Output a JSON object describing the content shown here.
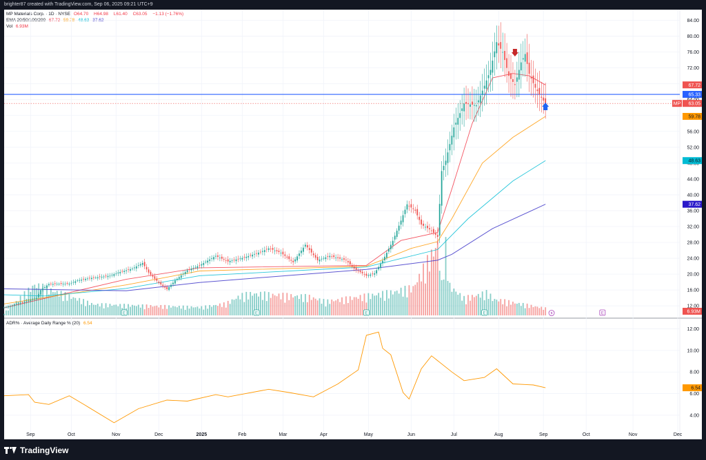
{
  "header": {
    "credit": "brighter87 created with TradingView.com, Sep 06, 2025 09:21 UTC+9"
  },
  "legend": {
    "symbol_line": {
      "name": "MP Materials Corp. · 1D · NYSE",
      "ohlc_labels": [
        "O",
        "H",
        "L",
        "C"
      ],
      "ohlc_values": [
        "64.70",
        "64.98",
        "61.40",
        "63.05"
      ],
      "change": "−1.13 (−1.76%)"
    },
    "ema_line": {
      "name": "EMA 20/50/100/200",
      "values": [
        "67.72",
        "59.78",
        "48.63",
        "37.62"
      ]
    },
    "vol_line": {
      "name": "Vol",
      "value": "6.93M"
    },
    "adr_line": {
      "name": "ADR% · Average Daily Range % (20)",
      "value": "6.54"
    }
  },
  "colors": {
    "up": "#26a69a",
    "down": "#ef5350",
    "ema20": "#f23645",
    "ema50": "#ff9800",
    "ema100": "#00bcd4",
    "ema200": "#3f37c9",
    "hline": "#2962ff",
    "adr": "#ff9800",
    "marker_down": "#c62828",
    "marker_up": "#1e66f5"
  },
  "icons": [
    "tradingview-logo-icon",
    "earnings-e-icon",
    "lightning-icon",
    "arrow-down-marker-icon",
    "arrow-up-marker-icon"
  ],
  "brand": {
    "name": "TradingView"
  },
  "chart_data": [
    {
      "type": "candlestick",
      "title": "MP Materials Corp. · 1D · NYSE",
      "x_ticks": [
        "Sep",
        "Oct",
        "Nov",
        "Dec",
        "2025",
        "Feb",
        "Mar",
        "Apr",
        "May",
        "Jun",
        "Jul",
        "Aug",
        "Sep",
        "Oct",
        "Nov",
        "Dec"
      ],
      "y_ticks": [
        "84.00",
        "80.00",
        "76.00",
        "72.00",
        "68.00",
        "64.00",
        "60.00",
        "56.00",
        "52.00",
        "48.00",
        "44.00",
        "40.00",
        "36.00",
        "32.00",
        "28.00",
        "24.00",
        "20.00",
        "16.00",
        "12.00"
      ],
      "ylim": [
        9.6,
        86
      ],
      "close_path": [
        [
          0,
          11.6
        ],
        [
          6,
          12.5
        ],
        [
          10,
          13
        ],
        [
          16,
          14
        ],
        [
          18,
          16
        ],
        [
          22,
          17.5
        ],
        [
          32,
          17.6
        ],
        [
          36,
          18.4
        ],
        [
          42,
          19
        ],
        [
          46,
          19.2
        ],
        [
          52,
          19.6
        ],
        [
          56,
          20.4
        ],
        [
          63,
          21.4
        ],
        [
          68,
          22.8
        ],
        [
          71,
          20.4
        ],
        [
          76,
          17.8
        ],
        [
          80,
          16.2
        ],
        [
          84,
          18.4
        ],
        [
          90,
          21
        ],
        [
          96,
          22.2
        ],
        [
          104,
          24.6
        ],
        [
          110,
          23.2
        ],
        [
          118,
          24.2
        ],
        [
          126,
          25.6
        ],
        [
          130,
          26.5
        ],
        [
          136,
          25.4
        ],
        [
          142,
          23
        ],
        [
          148,
          27.4
        ],
        [
          154,
          23.5
        ],
        [
          160,
          24.6
        ],
        [
          168,
          23.5
        ],
        [
          172,
          21.4
        ],
        [
          178,
          19.6
        ],
        [
          182,
          20.2
        ],
        [
          186,
          23.4
        ],
        [
          191,
          28.4
        ],
        [
          195,
          33.5
        ],
        [
          198,
          37.6
        ],
        [
          202,
          36
        ],
        [
          205,
          32.5
        ],
        [
          210,
          31
        ],
        [
          213,
          29.4
        ],
        [
          215,
          46
        ],
        [
          217,
          48.6
        ],
        [
          221,
          57
        ],
        [
          226,
          63
        ],
        [
          232,
          62.6
        ],
        [
          236,
          67.5
        ],
        [
          239,
          71.5
        ],
        [
          242,
          78.5
        ],
        [
          245,
          76
        ],
        [
          248,
          70
        ],
        [
          251,
          67.7
        ],
        [
          254,
          73.4
        ],
        [
          256,
          75.5
        ],
        [
          258,
          70.5
        ],
        [
          261,
          67
        ],
        [
          264,
          64.5
        ],
        [
          266,
          63.05
        ]
      ],
      "volume_bars": [
        [
          0,
          0.7
        ],
        [
          15,
          8.6
        ],
        [
          44,
          3.1
        ],
        [
          97,
          2.3
        ],
        [
          109,
          3.3
        ],
        [
          116,
          5.5
        ],
        [
          122,
          6.1
        ],
        [
          150,
          5.2
        ],
        [
          158,
          3.9
        ],
        [
          190,
          6.4
        ],
        [
          194,
          6.9
        ],
        [
          201,
          7.8
        ],
        [
          213,
          20
        ],
        [
          215,
          8.9
        ],
        [
          217,
          19.3
        ],
        [
          219,
          8.2
        ],
        [
          226,
          4.8
        ],
        [
          238,
          6.4
        ],
        [
          240,
          4.6
        ],
        [
          266,
          2
        ]
      ],
      "volume_value": "6.93M",
      "ema": [
        {
          "name": "EMA 20",
          "value": "67.72",
          "path": [
            [
              0,
              11.5
            ],
            [
              60,
              18.7
            ],
            [
              96,
              21.6
            ],
            [
              178,
              22.2
            ],
            [
              195,
              28.5
            ],
            [
              213,
              30.5
            ],
            [
              220,
              41.5
            ],
            [
              230,
              58
            ],
            [
              240,
              69.5
            ],
            [
              250,
              70.6
            ],
            [
              258,
              70
            ],
            [
              266,
              67.72
            ]
          ]
        },
        {
          "name": "EMA 50",
          "value": "59.78",
          "path": [
            [
              0,
              12.5
            ],
            [
              60,
              17.3
            ],
            [
              96,
              20.8
            ],
            [
              178,
              22
            ],
            [
              200,
              26.5
            ],
            [
              213,
              28.2
            ],
            [
              220,
              34
            ],
            [
              235,
              48
            ],
            [
              250,
              54.5
            ],
            [
              266,
              59.78
            ]
          ]
        },
        {
          "name": "EMA 100",
          "value": "48.63",
          "path": [
            [
              0,
              14.8
            ],
            [
              20,
              14.5
            ],
            [
              60,
              16.4
            ],
            [
              96,
              19.6
            ],
            [
              178,
              21.8
            ],
            [
              213,
              26.2
            ],
            [
              228,
              34
            ],
            [
              250,
              43.5
            ],
            [
              266,
              48.63
            ]
          ]
        },
        {
          "name": "EMA 200",
          "value": "37.62",
          "path": [
            [
              0,
              16.3
            ],
            [
              60,
              15.8
            ],
            [
              96,
              17.9
            ],
            [
              178,
              21.2
            ],
            [
              213,
              23.5
            ],
            [
              220,
              25
            ],
            [
              240,
              31.5
            ],
            [
              266,
              37.62
            ]
          ]
        }
      ],
      "horizontal_line": {
        "value": "65.33"
      },
      "last_price": {
        "label": "MP",
        "value": "63.05"
      },
      "earnings_markers": [
        59,
        124,
        178,
        236,
        294
      ],
      "arrow_down_at": 251,
      "arrow_up_at": 266
    },
    {
      "type": "line",
      "title": "ADR% · Average Daily Range % (20)",
      "y_ticks": [
        "12.00",
        "10.00",
        "8.00",
        "6.00",
        "4.00"
      ],
      "ylim": [
        2.4,
        12.8
      ],
      "series": [
        {
          "name": "ADR%",
          "value": "6.54",
          "path": [
            [
              0,
              5.8
            ],
            [
              12,
              5.9
            ],
            [
              15,
              5.2
            ],
            [
              22,
              5
            ],
            [
              32,
              5.8
            ],
            [
              40,
              4.9
            ],
            [
              54,
              3.3
            ],
            [
              66,
              4.6
            ],
            [
              80,
              5.4
            ],
            [
              90,
              5.3
            ],
            [
              104,
              5.9
            ],
            [
              110,
              5.7
            ],
            [
              130,
              6.4
            ],
            [
              140,
              6.1
            ],
            [
              152,
              5.7
            ],
            [
              164,
              6.9
            ],
            [
              174,
              8.2
            ],
            [
              178,
              11.4
            ],
            [
              184,
              11.7
            ],
            [
              186,
              10.2
            ],
            [
              190,
              9.6
            ],
            [
              196,
              6.1
            ],
            [
              199,
              5.5
            ],
            [
              205,
              8.3
            ],
            [
              210,
              9.5
            ],
            [
              220,
              8
            ],
            [
              226,
              7.2
            ],
            [
              236,
              7.5
            ],
            [
              242,
              8.3
            ],
            [
              250,
              6.9
            ],
            [
              260,
              6.8
            ],
            [
              266,
              6.54
            ]
          ]
        }
      ]
    }
  ]
}
